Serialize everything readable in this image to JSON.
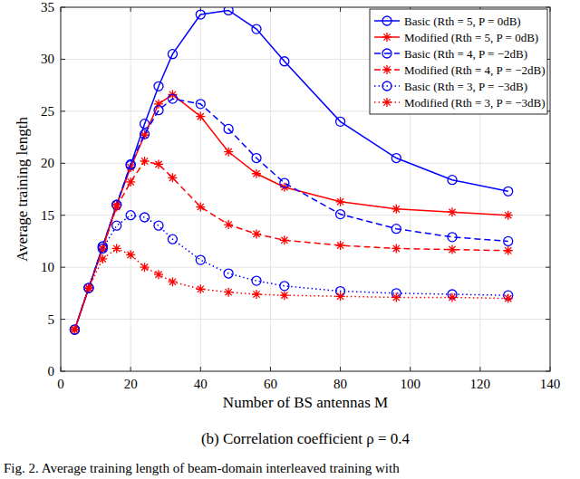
{
  "chart_data": {
    "type": "line",
    "subtitle": "(b) Correlation coefficient ρ = 0.4",
    "caption": "Fig. 2.  Average training length of beam-domain interleaved training with",
    "x_label": "Number of BS antennas M",
    "y_label": "Average training length",
    "x": [
      4,
      8,
      12,
      16,
      20,
      24,
      28,
      32,
      40,
      48,
      56,
      64,
      80,
      96,
      112,
      128
    ],
    "series": [
      {
        "name": "Basic      (Rth = 5, P = 0dB)",
        "color": "#0000ff",
        "marker": "circle",
        "line_style": "solid",
        "values": [
          4,
          8,
          12,
          16,
          19.8,
          23.8,
          27.4,
          30.5,
          34.3,
          34.7,
          32.9,
          29.8,
          24,
          20.5,
          18.4,
          17.3
        ]
      },
      {
        "name": "Modified (Rth = 5, P = 0dB)",
        "color": "#ff0000",
        "marker": "asterisk",
        "line_style": "solid",
        "values": [
          4,
          8,
          11.8,
          16,
          19.6,
          22.7,
          25.7,
          26.6,
          24.5,
          21.1,
          19,
          17.7,
          16.3,
          15.6,
          15.3,
          15
        ]
      },
      {
        "name": "Basic      (Rth = 4, P = −2dB)",
        "color": "#0000ff",
        "marker": "circle",
        "line_style": "dashed",
        "values": [
          4,
          8,
          12,
          16,
          19.9,
          22.8,
          25.1,
          26.2,
          25.7,
          23.3,
          20.5,
          18.1,
          15.1,
          13.7,
          12.9,
          12.5
        ]
      },
      {
        "name": "Modified (Rth = 4, P = −2dB)",
        "color": "#ff0000",
        "marker": "asterisk",
        "line_style": "dashed",
        "values": [
          4,
          8,
          11.8,
          15.8,
          18.2,
          20.2,
          19.9,
          18.6,
          15.8,
          14.1,
          13.2,
          12.6,
          12.1,
          11.8,
          11.7,
          11.6
        ]
      },
      {
        "name": "Basic      (Rth = 3, P = −3dB)",
        "color": "#0000ff",
        "marker": "circle",
        "line_style": "dotted",
        "values": [
          4,
          8,
          11.8,
          14,
          15,
          14.8,
          14,
          12.7,
          10.7,
          9.4,
          8.7,
          8.2,
          7.7,
          7.5,
          7.4,
          7.3
        ]
      },
      {
        "name": "Modified (Rth = 3, P = −3dB)",
        "color": "#ff0000",
        "marker": "asterisk",
        "line_style": "dotted",
        "values": [
          4,
          8,
          10.8,
          11.8,
          11.2,
          10,
          9.3,
          8.6,
          7.9,
          7.6,
          7.4,
          7.3,
          7.2,
          7.1,
          7.1,
          7
        ]
      }
    ],
    "xlim": [
      0,
      140
    ],
    "ylim": [
      0,
      35
    ],
    "xticks": [
      0,
      20,
      40,
      60,
      80,
      100,
      120,
      140
    ],
    "yticks": [
      0,
      5,
      10,
      15,
      20,
      25,
      30,
      35
    ],
    "grid": true,
    "legend": "top-right"
  }
}
